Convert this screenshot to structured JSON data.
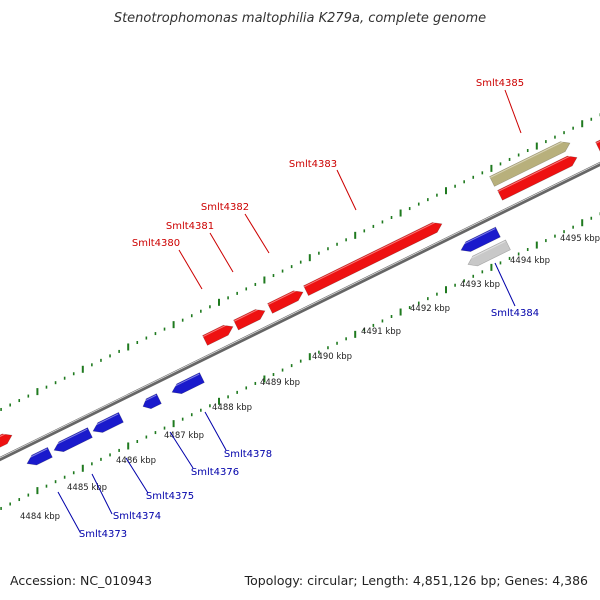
{
  "title": "Stenotrophomonas maltophilia K279a, complete genome",
  "footer": {
    "accession": "Accession: NC_010943",
    "summary": "Topology: circular; Length: 4,851,126 bp; Genes: 4,386"
  },
  "colors": {
    "forward_gene": "#ee1111",
    "reverse_gene": "#1a1acc",
    "special_gene": "#b8b07c",
    "gray_gene": "#c8c8c8",
    "backbone": "#666666",
    "tick": "#1f7a1f",
    "forward_label": "#cc0000",
    "reverse_label": "#0000aa"
  },
  "kbp_labels": [
    "4484 kbp",
    "4485 kbp",
    "4486 kbp",
    "4487 kbp",
    "4488 kbp",
    "4489 kbp",
    "4490 kbp",
    "4491 kbp",
    "4492 kbp",
    "4493 kbp",
    "4494 kbp",
    "4495 kbp"
  ],
  "forward_gene_labels": [
    "Smlt4380",
    "Smlt4381",
    "Smlt4382",
    "Smlt4383",
    "Smlt4385"
  ],
  "reverse_gene_labels": [
    "Smlt4373",
    "Smlt4374",
    "Smlt4375",
    "Smlt4376",
    "Smlt4378",
    "Smlt4384"
  ]
}
